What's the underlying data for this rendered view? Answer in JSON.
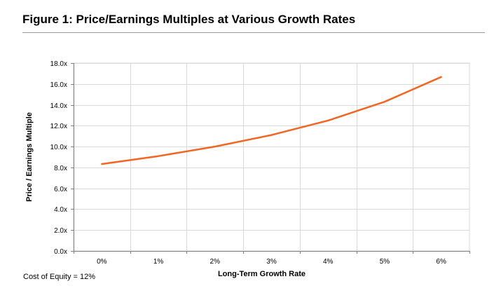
{
  "figure": {
    "title": "Figure 1: Price/Earnings Multiples at Various Growth Rates",
    "footnote": "Cost of Equity = 12%"
  },
  "chart_data": {
    "type": "line",
    "title": "Figure 1: Price/Earnings Multiples at Various Growth Rates",
    "xlabel": "Long-Term Growth Rate",
    "ylabel": "Price / Earnings Multiple",
    "categories": [
      "0%",
      "1%",
      "2%",
      "3%",
      "4%",
      "5%",
      "6%"
    ],
    "series": [
      {
        "name": "P/E Multiple",
        "color": "#f26522",
        "values": [
          8.33,
          9.09,
          10.0,
          11.11,
          12.5,
          14.29,
          16.67
        ]
      }
    ],
    "ylim": [
      0,
      18
    ],
    "ytick_step": 2,
    "ytick_labels": [
      "0.0x",
      "2.0x",
      "4.0x",
      "6.0x",
      "8.0x",
      "10.0x",
      "12.0x",
      "14.0x",
      "16.0x",
      "18.0x"
    ],
    "grid": true,
    "grid_color": "#d9d9d9",
    "axis_color": "#808080"
  }
}
